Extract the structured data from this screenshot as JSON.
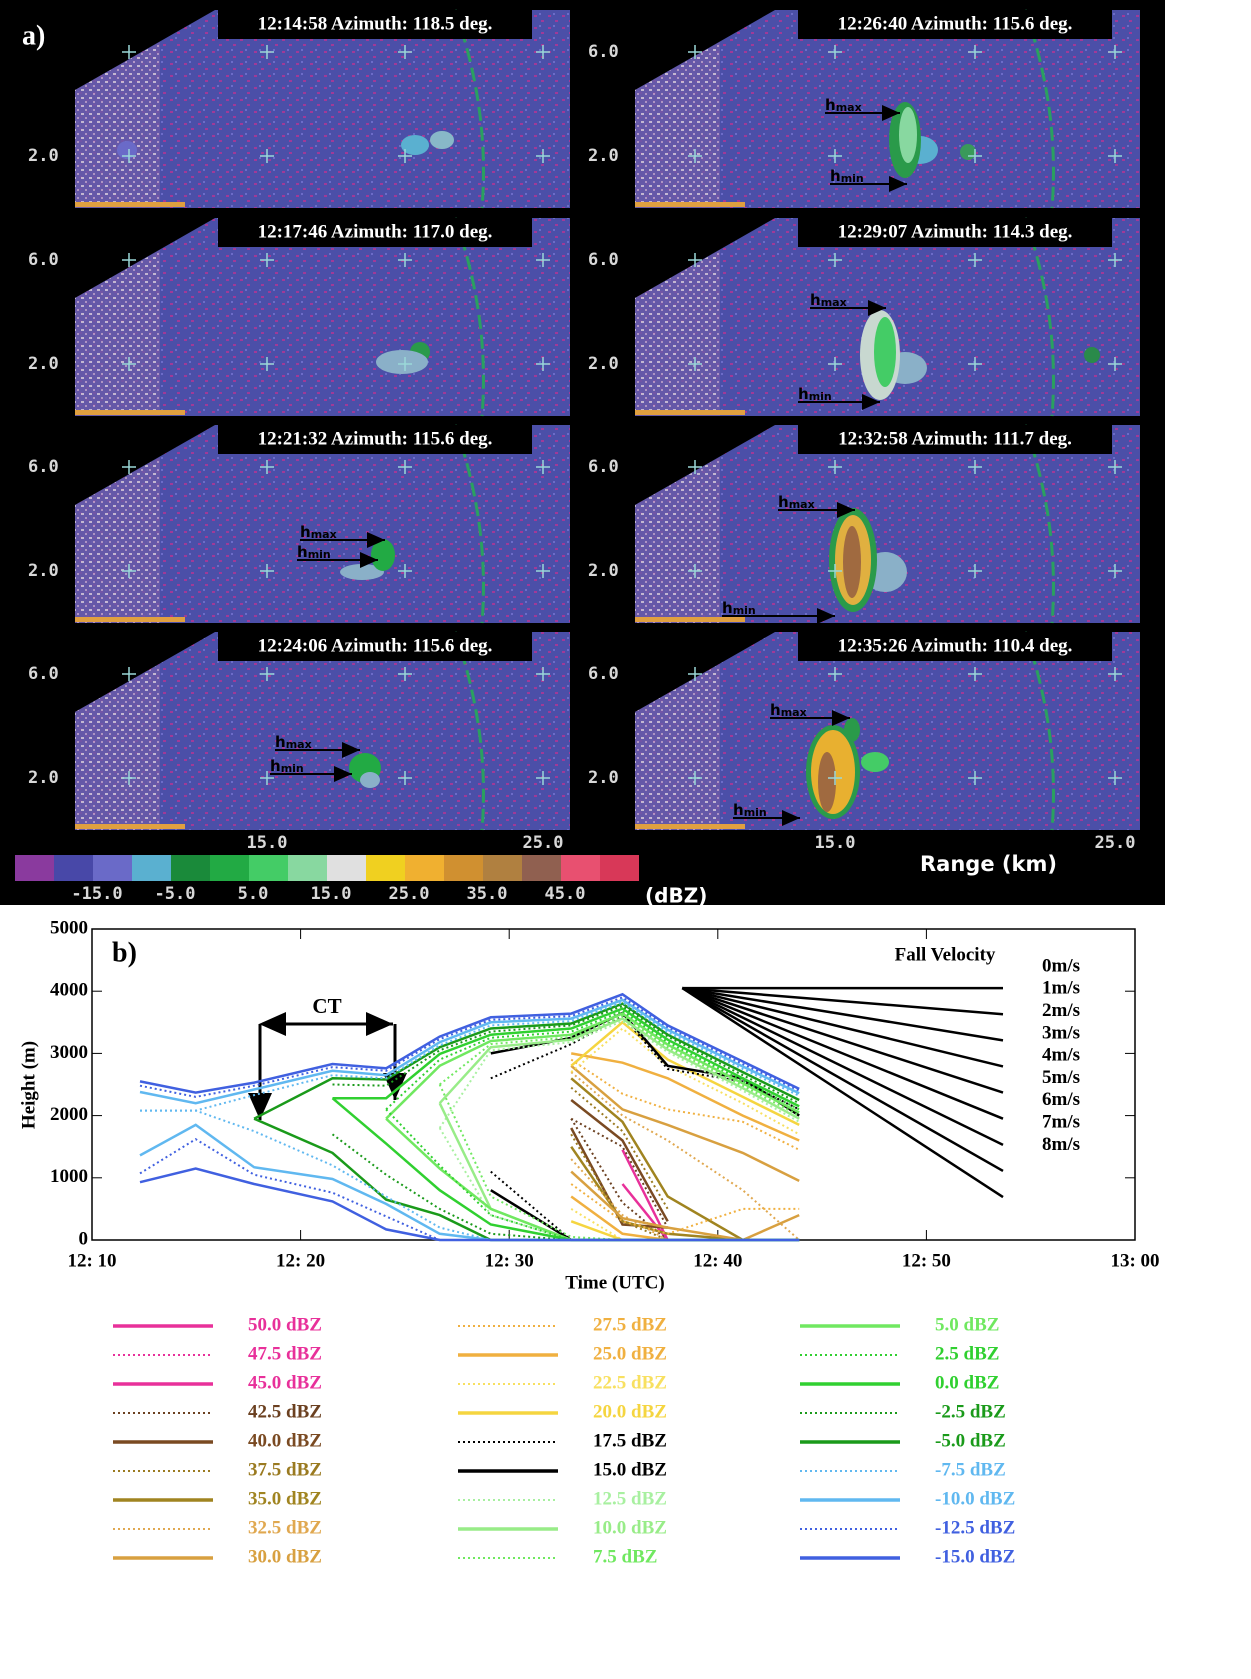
{
  "figure_a": {
    "label": "a)",
    "panels": [
      {
        "title": "12:14:58  Azimuth: 118.5 deg.",
        "yticks": [
          {
            "value": 2,
            "label": "2.0"
          }
        ]
      },
      {
        "title": "12:26:40  Azimuth: 115.6 deg.",
        "yticks": [
          {
            "value": 6,
            "label": "6.0"
          },
          {
            "value": 2,
            "label": "2.0"
          }
        ]
      },
      {
        "title": "12:17:46  Azimuth: 117.0 deg.",
        "yticks": [
          {
            "value": 6,
            "label": "6.0"
          },
          {
            "value": 2,
            "label": "2.0"
          }
        ]
      },
      {
        "title": "12:29:07  Azimuth: 114.3 deg.",
        "yticks": [
          {
            "value": 6,
            "label": "6.0"
          },
          {
            "value": 2,
            "label": "2.0"
          }
        ]
      },
      {
        "title": "12:21:32  Azimuth: 115.6 deg.",
        "yticks": [
          {
            "value": 6,
            "label": "6.0"
          },
          {
            "value": 2,
            "label": "2.0"
          }
        ]
      },
      {
        "title": "12:32:58  Azimuth: 111.7 deg.",
        "yticks": [
          {
            "value": 6,
            "label": "6.0"
          },
          {
            "value": 2,
            "label": "2.0"
          }
        ]
      },
      {
        "title": "12:24:06  Azimuth: 115.6 deg.",
        "yticks": [
          {
            "value": 6,
            "label": "6.0"
          },
          {
            "value": 2,
            "label": "2.0"
          }
        ]
      },
      {
        "title": "12:35:26  Azimuth: 110.4 deg.",
        "yticks": [
          {
            "value": 6,
            "label": "6.0"
          },
          {
            "value": 2,
            "label": "2.0"
          }
        ]
      }
    ],
    "hmax": {
      "base": "h",
      "sub": "max"
    },
    "hmin": {
      "base": "h",
      "sub": "min"
    },
    "xticks": [
      {
        "value": 15,
        "label": "15.0"
      },
      {
        "value": 25,
        "label": "25.0"
      }
    ],
    "xlabel": "Range (km)",
    "colorbar_colors": [
      "#8a3a9e",
      "#4848a8",
      "#6a6ac8",
      "#5ab0d0",
      "#1a8a3a",
      "#22aa44",
      "#44cc66",
      "#88d8a0",
      "#e0e0e0",
      "#f0d020",
      "#f0b030",
      "#d09030",
      "#b08040",
      "#906050",
      "#e85070",
      "#d83858"
    ],
    "colorbar_ticks": [
      {
        "value": -15,
        "label": "-15.0"
      },
      {
        "value": -5,
        "label": "-5.0"
      },
      {
        "value": 5,
        "label": "5.0"
      },
      {
        "value": 15,
        "label": "15.0"
      },
      {
        "value": 25,
        "label": "25.0"
      },
      {
        "value": 35,
        "label": "35.0"
      },
      {
        "value": 45,
        "label": "45.0"
      }
    ],
    "colorbar_unit": "(dBZ)"
  },
  "chart_data": {
    "type": "line",
    "label": "b)",
    "xlabel": "Time (UTC)",
    "ylabel": "Height (m)",
    "xlim": [
      10,
      60
    ],
    "ylim": [
      0,
      5000
    ],
    "xticks": [
      {
        "value": 10,
        "label": "12: 10"
      },
      {
        "value": 20,
        "label": "12: 20"
      },
      {
        "value": 30,
        "label": "12: 30"
      },
      {
        "value": 40,
        "label": "12: 40"
      },
      {
        "value": 50,
        "label": "12: 50"
      },
      {
        "value": 60,
        "label": "13: 00"
      }
    ],
    "yticks": [
      0,
      1000,
      2000,
      3000,
      4000,
      5000
    ],
    "annotation": "CT",
    "fall_velocity": {
      "title": "Fall Velocity",
      "values": [
        0,
        1,
        2,
        3,
        4,
        5,
        6,
        7,
        8
      ],
      "value_labels": [
        "0m/s",
        "1m/s",
        "2m/s",
        "3m/s",
        "4m/s",
        "5m/s",
        "6m/s",
        "7m/s",
        "8m/s"
      ]
    },
    "x": [
      12.3,
      14.97,
      17.77,
      21.53,
      24.1,
      26.67,
      29.12,
      32.97,
      35.43,
      37.6,
      41.2,
      43.9
    ],
    "series": [
      {
        "name": "50.0 dBZ",
        "color": "#e8309a",
        "dotted": false,
        "hmax": [
          null,
          null,
          null,
          null,
          null,
          null,
          null,
          null,
          null,
          null,
          null,
          null
        ],
        "hmin": [
          null,
          null,
          null,
          null,
          null,
          null,
          null,
          null,
          null,
          null,
          null,
          null
        ]
      },
      {
        "name": "47.5 dBZ",
        "color": "#e8309a",
        "dotted": true,
        "hmax": [
          null,
          null,
          null,
          null,
          null,
          null,
          null,
          null,
          null,
          null,
          null,
          null
        ],
        "hmin": [
          null,
          null,
          null,
          null,
          null,
          null,
          null,
          null,
          null,
          null,
          null,
          null
        ]
      },
      {
        "name": "45.0 dBZ",
        "color": "#e8309a",
        "dotted": false,
        "hmax": [
          null,
          null,
          null,
          null,
          null,
          null,
          null,
          null,
          1450,
          0,
          null,
          null
        ],
        "hmin": [
          null,
          null,
          null,
          null,
          null,
          null,
          null,
          null,
          900,
          0,
          null,
          null
        ]
      },
      {
        "name": "42.5 dBZ",
        "color": "#6b4020",
        "dotted": true,
        "hmax": [
          null,
          null,
          null,
          null,
          null,
          null,
          null,
          1950,
          1500,
          200,
          null,
          null
        ],
        "hmin": [
          null,
          null,
          null,
          null,
          null,
          null,
          null,
          1950,
          600,
          0,
          null,
          null
        ]
      },
      {
        "name": "40.0 dBZ",
        "color": "#7a4a22",
        "dotted": false,
        "hmax": [
          null,
          null,
          null,
          null,
          null,
          null,
          null,
          2250,
          1600,
          300,
          null,
          null
        ],
        "hmin": [
          null,
          null,
          null,
          null,
          null,
          null,
          null,
          1800,
          250,
          200,
          null,
          null
        ]
      },
      {
        "name": "37.5 dBZ",
        "color": "#9a7a20",
        "dotted": true,
        "hmax": [
          null,
          null,
          null,
          null,
          null,
          null,
          null,
          2450,
          1750,
          500,
          null,
          null
        ],
        "hmin": [
          null,
          null,
          null,
          null,
          null,
          null,
          null,
          1700,
          300,
          0,
          null,
          null
        ]
      },
      {
        "name": "35.0 dBZ",
        "color": "#a08420",
        "dotted": false,
        "hmax": [
          null,
          null,
          null,
          null,
          null,
          null,
          null,
          2600,
          1900,
          700,
          0,
          null
        ],
        "hmin": [
          null,
          null,
          null,
          null,
          null,
          null,
          null,
          1500,
          300,
          100,
          0,
          null
        ]
      },
      {
        "name": "32.5 dBZ",
        "color": "#e0a850",
        "dotted": true,
        "hmax": [
          null,
          null,
          null,
          null,
          null,
          null,
          null,
          2700,
          2000,
          1600,
          800,
          0
        ],
        "hmin": [
          null,
          null,
          null,
          null,
          null,
          null,
          null,
          1300,
          400,
          0,
          0,
          0
        ]
      },
      {
        "name": "30.0 dBZ",
        "color": "#d8a040",
        "dotted": false,
        "hmax": [
          null,
          null,
          null,
          null,
          null,
          null,
          null,
          2800,
          2100,
          1850,
          1400,
          950
        ],
        "hmin": [
          null,
          null,
          null,
          null,
          null,
          null,
          null,
          1100,
          350,
          200,
          0,
          400
        ]
      },
      {
        "name": "27.5 dBZ",
        "color": "#f0b040",
        "dotted": true,
        "hmax": [
          null,
          null,
          null,
          null,
          null,
          null,
          null,
          2900,
          2350,
          2100,
          1900,
          1450
        ],
        "hmin": [
          null,
          null,
          null,
          null,
          null,
          null,
          null,
          900,
          300,
          100,
          500,
          500
        ]
      },
      {
        "name": "25.0 dBZ",
        "color": "#f0b040",
        "dotted": false,
        "hmax": [
          null,
          null,
          null,
          null,
          null,
          null,
          null,
          3000,
          2850,
          2600,
          2000,
          1600
        ],
        "hmin": [
          null,
          null,
          null,
          null,
          null,
          null,
          null,
          700,
          100,
          0,
          0,
          0
        ]
      },
      {
        "name": "22.5 dBZ",
        "color": "#f8e060",
        "dotted": true,
        "hmax": [
          null,
          null,
          null,
          null,
          null,
          null,
          null,
          2700,
          3400,
          2800,
          2200,
          1700
        ],
        "hmin": [
          null,
          null,
          null,
          null,
          null,
          null,
          null,
          500,
          0,
          0,
          0,
          0
        ]
      },
      {
        "name": "20.0 dBZ",
        "color": "#f5d540",
        "dotted": false,
        "hmax": [
          null,
          null,
          null,
          null,
          null,
          null,
          null,
          2800,
          3500,
          2900,
          2300,
          1850
        ],
        "hmin": [
          null,
          null,
          null,
          null,
          null,
          null,
          null,
          300,
          0,
          0,
          0,
          0
        ]
      },
      {
        "name": "17.5 dBZ",
        "color": "#000000",
        "dotted": true,
        "hmax": [
          null,
          null,
          null,
          null,
          null,
          null,
          2600,
          3150,
          3600,
          2750,
          2550,
          2100
        ],
        "hmin": [
          null,
          null,
          null,
          null,
          null,
          null,
          1100,
          0,
          0,
          0,
          0,
          0
        ]
      },
      {
        "name": "15.0 dBZ",
        "color": "#000000",
        "dotted": false,
        "hmax": [
          null,
          null,
          null,
          null,
          null,
          null,
          3000,
          3250,
          3650,
          2800,
          2600,
          2000
        ],
        "hmin": [
          null,
          null,
          null,
          null,
          null,
          null,
          800,
          0,
          0,
          0,
          0,
          0
        ]
      },
      {
        "name": "12.5 dBZ",
        "color": "#a8f0a0",
        "dotted": true,
        "hmax": [
          null,
          null,
          null,
          null,
          null,
          1800,
          3050,
          3180,
          3520,
          3020,
          2400,
          1900
        ],
        "hmin": [
          null,
          null,
          null,
          null,
          null,
          1800,
          400,
          0,
          0,
          0,
          0,
          0
        ]
      },
      {
        "name": "10.0 dBZ",
        "color": "#98ec88",
        "dotted": false,
        "hmax": [
          null,
          null,
          null,
          null,
          null,
          2200,
          3100,
          3220,
          3560,
          3060,
          2440,
          1950
        ],
        "hmin": [
          null,
          null,
          null,
          null,
          null,
          2200,
          500,
          0,
          0,
          0,
          0,
          0
        ]
      },
      {
        "name": "7.5 dBZ",
        "color": "#70e860",
        "dotted": true,
        "hmax": [
          null,
          null,
          null,
          null,
          null,
          2500,
          3150,
          3260,
          3600,
          3100,
          2480,
          2000
        ],
        "hmin": [
          null,
          null,
          null,
          null,
          null,
          2500,
          700,
          50,
          0,
          0,
          0,
          0
        ]
      },
      {
        "name": "5.0 dBZ",
        "color": "#70e860",
        "dotted": false,
        "hmax": [
          null,
          null,
          null,
          null,
          1950,
          2800,
          3200,
          3300,
          3640,
          3140,
          2520,
          2050
        ],
        "hmin": [
          null,
          null,
          null,
          null,
          1950,
          1150,
          500,
          0,
          0,
          0,
          0,
          0
        ]
      },
      {
        "name": "2.5 dBZ",
        "color": "#30d030",
        "dotted": true,
        "hmax": [
          null,
          null,
          null,
          null,
          2100,
          2900,
          3250,
          3350,
          3680,
          3180,
          2560,
          2100
        ],
        "hmin": [
          null,
          null,
          null,
          null,
          2100,
          1200,
          400,
          0,
          0,
          0,
          0,
          0
        ]
      },
      {
        "name": "0.0 dBZ",
        "color": "#30d030",
        "dotted": false,
        "hmax": [
          null,
          null,
          null,
          2280,
          2280,
          2990,
          3300,
          3400,
          3720,
          3220,
          2600,
          2150
        ],
        "hmin": [
          null,
          null,
          null,
          2280,
          1550,
          800,
          250,
          0,
          0,
          0,
          0,
          0
        ]
      },
      {
        "name": "-2.5 dBZ",
        "color": "#1a9a1a",
        "dotted": true,
        "hmax": [
          null,
          null,
          null,
          2500,
          2480,
          3050,
          3350,
          3450,
          3760,
          3270,
          2650,
          2200
        ],
        "hmin": [
          null,
          null,
          null,
          1700,
          1050,
          500,
          100,
          0,
          0,
          0,
          0,
          0
        ]
      },
      {
        "name": "-5.0 dBZ",
        "color": "#1a9a1a",
        "dotted": false,
        "hmax": [
          null,
          null,
          1950,
          2600,
          2580,
          3100,
          3400,
          3480,
          3800,
          3300,
          2700,
          2250
        ],
        "hmin": [
          null,
          null,
          1950,
          1400,
          650,
          400,
          0,
          0,
          0,
          0,
          0,
          0
        ]
      },
      {
        "name": "-7.5 dBZ",
        "color": "#60b8f0",
        "dotted": true,
        "hmax": [
          2080,
          2080,
          2330,
          2650,
          2600,
          3130,
          3450,
          3520,
          3820,
          3340,
          2750,
          2320
        ],
        "hmin": [
          2080,
          2080,
          1750,
          1200,
          700,
          200,
          0,
          0,
          0,
          0,
          0,
          0
        ]
      },
      {
        "name": "-10.0 dBZ",
        "color": "#60b8f0",
        "dotted": false,
        "hmax": [
          2380,
          2200,
          2420,
          2720,
          2650,
          3180,
          3500,
          3560,
          3860,
          3380,
          2790,
          2360
        ],
        "hmin": [
          1360,
          1850,
          1170,
          980,
          580,
          100,
          0,
          0,
          0,
          0,
          0,
          0
        ]
      },
      {
        "name": "-12.5 dBZ",
        "color": "#4060e0",
        "dotted": true,
        "hmax": [
          2480,
          2300,
          2480,
          2780,
          2720,
          3230,
          3540,
          3600,
          3900,
          3420,
          2830,
          2400
        ],
        "hmin": [
          1070,
          1620,
          1050,
          760,
          380,
          0,
          0,
          0,
          0,
          0,
          0,
          0
        ]
      },
      {
        "name": "-15.0 dBZ",
        "color": "#4060e0",
        "dotted": false,
        "hmax": [
          2550,
          2370,
          2530,
          2830,
          2760,
          3270,
          3580,
          3640,
          3950,
          3450,
          2870,
          2430
        ],
        "hmin": [
          930,
          1150,
          900,
          620,
          170,
          0,
          0,
          0,
          0,
          0,
          0,
          0
        ]
      }
    ]
  }
}
